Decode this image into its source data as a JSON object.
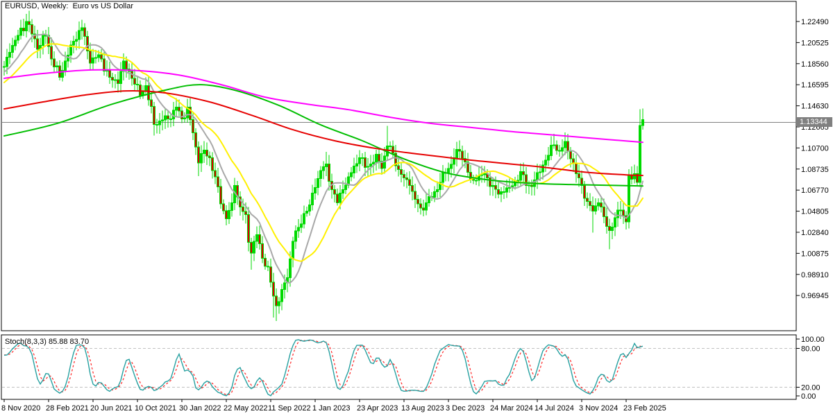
{
  "title": "EURUSD, Weekly:  Euro vs US Dollar",
  "price_axis": {
    "ticks": [
      "1.22490",
      "1.20525",
      "1.18560",
      "1.16595",
      "1.14630",
      "1.12665",
      "1.10700",
      "1.08735",
      "1.06770",
      "1.04805",
      "1.02840",
      "1.00875",
      "0.98910",
      "0.96945"
    ],
    "tick_values": [
      1.2249,
      1.20525,
      1.1856,
      1.16595,
      1.1463,
      1.12665,
      1.107,
      1.08735,
      1.0677,
      1.04805,
      1.0284,
      1.00875,
      0.9891,
      0.96945
    ],
    "current_price": "1.13344",
    "current_price_value": 1.13344
  },
  "time_axis": {
    "labels": [
      "8 Nov 2020",
      "28 Feb 2021",
      "20 Jun 2021",
      "10 Oct 2021",
      "30 Jan 2022",
      "22 May 2022",
      "11 Sep 2022",
      "1 Jan 2023",
      "23 Apr 2023",
      "13 Aug 2023",
      "3 Dec 2023",
      "24 Mar 2024",
      "14 Jul 2024",
      "3 Nov 2024",
      "23 Feb 2025"
    ],
    "label_every_weeks": 16
  },
  "colors": {
    "background": "#FFFFFF",
    "frame": "#000000",
    "text": "#000000",
    "candle_up": "#00DA00",
    "candle_down_fill": "#D60000",
    "current_price_line": "#808080",
    "badge_bg": "#808080",
    "badge_text": "#FFFFFF",
    "level_dash": "#C0C0C0"
  },
  "chart_data": {
    "type": "candlestick",
    "symbol": "EURUSD",
    "timeframe": "Weekly",
    "weeks": 231,
    "prehistory": {
      "weeks": 24,
      "from": 1.14,
      "to": 1.185
    },
    "pivots": [
      [
        0,
        1.183
      ],
      [
        2,
        1.196
      ],
      [
        5,
        1.212
      ],
      [
        8,
        1.225
      ],
      [
        9,
        1.222
      ],
      [
        12,
        1.199
      ],
      [
        15,
        1.212
      ],
      [
        17,
        1.19
      ],
      [
        20,
        1.173
      ],
      [
        24,
        1.203
      ],
      [
        28,
        1.219
      ],
      [
        31,
        1.186
      ],
      [
        34,
        1.194
      ],
      [
        38,
        1.173
      ],
      [
        41,
        1.167
      ],
      [
        43,
        1.188
      ],
      [
        46,
        1.172
      ],
      [
        49,
        1.156
      ],
      [
        51,
        1.165
      ],
      [
        54,
        1.129
      ],
      [
        56,
        1.132
      ],
      [
        58,
        1.137
      ],
      [
        60,
        1.134
      ],
      [
        62,
        1.145
      ],
      [
        64,
        1.134
      ],
      [
        66,
        1.145
      ],
      [
        68,
        1.121
      ],
      [
        70,
        1.093
      ],
      [
        72,
        1.105
      ],
      [
        74,
        1.098
      ],
      [
        76,
        1.08
      ],
      [
        78,
        1.055
      ],
      [
        80,
        1.041
      ],
      [
        82,
        1.056
      ],
      [
        83,
        1.072
      ],
      [
        85,
        1.052
      ],
      [
        87,
        1.045
      ],
      [
        88,
        1.019
      ],
      [
        89,
        1.009
      ],
      [
        91,
        1.026
      ],
      [
        93,
        1.004
      ],
      [
        95,
        0.996
      ],
      [
        97,
        0.969
      ],
      [
        98,
        0.96
      ],
      [
        100,
        0.975
      ],
      [
        102,
        0.986
      ],
      [
        104,
        1.02
      ],
      [
        106,
        1.033
      ],
      [
        108,
        1.046
      ],
      [
        110,
        1.054
      ],
      [
        112,
        1.07
      ],
      [
        114,
        1.086
      ],
      [
        116,
        1.092
      ],
      [
        118,
        1.068
      ],
      [
        120,
        1.056
      ],
      [
        122,
        1.068
      ],
      [
        124,
        1.08
      ],
      [
        126,
        1.09
      ],
      [
        128,
        1.098
      ],
      [
        130,
        1.089
      ],
      [
        132,
        1.092
      ],
      [
        134,
        1.101
      ],
      [
        136,
        1.088
      ],
      [
        138,
        1.109
      ],
      [
        140,
        1.102
      ],
      [
        142,
        1.087
      ],
      [
        144,
        1.079
      ],
      [
        146,
        1.072
      ],
      [
        148,
        1.059
      ],
      [
        150,
        1.051
      ],
      [
        152,
        1.056
      ],
      [
        154,
        1.061
      ],
      [
        156,
        1.068
      ],
      [
        158,
        1.084
      ],
      [
        160,
        1.088
      ],
      [
        162,
        1.098
      ],
      [
        164,
        1.104
      ],
      [
        166,
        1.094
      ],
      [
        168,
        1.078
      ],
      [
        170,
        1.077
      ],
      [
        172,
        1.082
      ],
      [
        174,
        1.079
      ],
      [
        176,
        1.072
      ],
      [
        178,
        1.064
      ],
      [
        180,
        1.066
      ],
      [
        182,
        1.07
      ],
      [
        184,
        1.076
      ],
      [
        186,
        1.085
      ],
      [
        188,
        1.072
      ],
      [
        190,
        1.071
      ],
      [
        192,
        1.084
      ],
      [
        194,
        1.091
      ],
      [
        196,
        1.1
      ],
      [
        198,
        1.11
      ],
      [
        200,
        1.104
      ],
      [
        202,
        1.113
      ],
      [
        204,
        1.097
      ],
      [
        206,
        1.083
      ],
      [
        208,
        1.072
      ],
      [
        210,
        1.057
      ],
      [
        212,
        1.048
      ],
      [
        214,
        1.056
      ],
      [
        216,
        1.043
      ],
      [
        218,
        1.03
      ],
      [
        220,
        1.042
      ],
      [
        222,
        1.049
      ],
      [
        224,
        1.038
      ],
      [
        225,
        1.082
      ],
      [
        226,
        1.078
      ],
      [
        227,
        1.083
      ],
      [
        228,
        1.075
      ],
      [
        229,
        1.128
      ],
      [
        230,
        1.13344
      ]
    ],
    "wick_overrides": {
      "9": {
        "high": 1.2349
      },
      "20": {
        "low": 1.17
      },
      "28": {
        "high": 1.2266
      },
      "49": {
        "low": 1.1524
      },
      "54": {
        "low": 1.1186
      },
      "70": {
        "low": 1.0806
      },
      "80": {
        "low": 1.0349
      },
      "89": {
        "low": 0.9935
      },
      "97": {
        "low": 0.949
      },
      "98": {
        "low": 0.9455
      },
      "116": {
        "high": 1.1033
      },
      "120": {
        "low": 1.0533
      },
      "138": {
        "high": 1.1276
      },
      "150": {
        "low": 1.0448
      },
      "164": {
        "high": 1.1139
      },
      "178": {
        "low": 1.0601
      },
      "198": {
        "high": 1.1201
      },
      "202": {
        "high": 1.1214
      },
      "212": {
        "low": 1.028
      },
      "218": {
        "low": 1.0125
      },
      "229": {
        "high": 1.143
      },
      "230": {
        "high": 1.1437,
        "low": 1.124
      }
    },
    "moving_averages": [
      {
        "name": "ma-fast-gray",
        "mode": "sma",
        "period": 10,
        "color": "#A8A8A8"
      },
      {
        "name": "ma-fast-yellow",
        "mode": "sma",
        "period": 20,
        "color": "#FFF000"
      },
      {
        "name": "ma-slow-green",
        "mode": "points",
        "color": "#00BE00",
        "points": [
          [
            0,
            1.1182
          ],
          [
            19,
            1.1298
          ],
          [
            39,
            1.1479
          ],
          [
            59,
            1.1615
          ],
          [
            71,
            1.166
          ],
          [
            84,
            1.1602
          ],
          [
            99,
            1.1466
          ],
          [
            114,
            1.1285
          ],
          [
            129,
            1.1137
          ],
          [
            144,
            1.0968
          ],
          [
            159,
            1.0839
          ],
          [
            174,
            1.0774
          ],
          [
            189,
            1.0742
          ],
          [
            204,
            1.0729
          ],
          [
            230,
            1.0716
          ]
        ]
      },
      {
        "name": "ma-slow-red",
        "mode": "points",
        "color": "#E60000",
        "points": [
          [
            0,
            1.1434
          ],
          [
            14,
            1.1499
          ],
          [
            29,
            1.1563
          ],
          [
            44,
            1.1602
          ],
          [
            58,
            1.1583
          ],
          [
            74,
            1.1499
          ],
          [
            89,
            1.1376
          ],
          [
            104,
            1.124
          ],
          [
            119,
            1.1137
          ],
          [
            134,
            1.1065
          ],
          [
            149,
            1.1014
          ],
          [
            164,
            1.0968
          ],
          [
            179,
            1.0929
          ],
          [
            194,
            1.0891
          ],
          [
            209,
            1.0845
          ],
          [
            224,
            1.0819
          ],
          [
            230,
            1.0813
          ]
        ]
      },
      {
        "name": "ma-slow-magenta",
        "mode": "points",
        "color": "#FF00FF",
        "points": [
          [
            0,
            1.1719
          ],
          [
            14,
            1.1764
          ],
          [
            31,
            1.1797
          ],
          [
            49,
            1.179
          ],
          [
            64,
            1.1745
          ],
          [
            79,
            1.1654
          ],
          [
            94,
            1.1544
          ],
          [
            109,
            1.1479
          ],
          [
            124,
            1.1427
          ],
          [
            139,
            1.1356
          ],
          [
            154,
            1.1298
          ],
          [
            169,
            1.1259
          ],
          [
            184,
            1.122
          ],
          [
            199,
            1.1188
          ],
          [
            214,
            1.1156
          ],
          [
            230,
            1.1123
          ]
        ]
      }
    ],
    "stochastic": {
      "label": "Stoch(8,3,3) 85.88 83.70",
      "k_period": 8,
      "slowing": 3,
      "d_period": 3,
      "main_value": 85.88,
      "signal_value": 83.7,
      "scale_labels": [
        "100.00",
        "80.00",
        "20.00",
        "0.00"
      ],
      "scale_values": [
        100,
        80,
        20,
        0
      ],
      "level_lines": [
        80,
        20
      ],
      "main_color": "#26A0A0",
      "signal_color": "#FF2020"
    }
  }
}
